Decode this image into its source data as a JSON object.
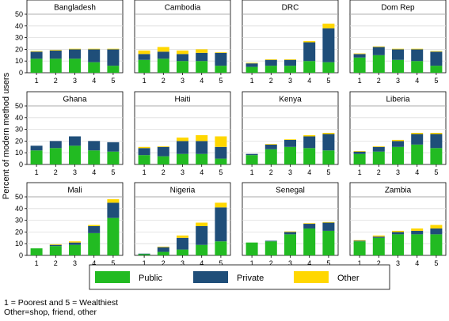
{
  "chart_data": {
    "type": "bar",
    "stacked": true,
    "layout": "small-multiples",
    "ylabel": "Percent of modern method users",
    "categories": [
      "1",
      "2",
      "3",
      "4",
      "5"
    ],
    "ylim": [
      0,
      50
    ],
    "yticks": [
      0,
      10,
      20,
      30,
      40,
      50
    ],
    "grid": true,
    "legend_position": "bottom",
    "series_names": [
      "Public",
      "Private",
      "Other"
    ],
    "colors": {
      "Public": "#22bb22",
      "Private": "#1f4e79",
      "Other": "#ffd700"
    },
    "panels": [
      {
        "title": "Bangladesh",
        "public": [
          12,
          12,
          12,
          9,
          6
        ],
        "private": [
          6,
          7,
          8,
          11,
          14
        ],
        "other": [
          0.5,
          0.5,
          0.5,
          0.5,
          0.5
        ]
      },
      {
        "title": "Cambodia",
        "public": [
          11,
          12,
          10,
          10,
          6
        ],
        "private": [
          5,
          6,
          6,
          7,
          11
        ],
        "other": [
          3,
          4,
          3,
          3,
          0.5
        ]
      },
      {
        "title": "DRC",
        "public": [
          5,
          6,
          6,
          10,
          9
        ],
        "private": [
          3,
          5,
          5,
          16,
          29
        ],
        "other": [
          0.5,
          0.5,
          0.5,
          1,
          4
        ]
      },
      {
        "title": "Dom Rep",
        "public": [
          13,
          15,
          11,
          10,
          6
        ],
        "private": [
          3,
          7,
          9,
          10,
          12
        ],
        "other": [
          0.5,
          0.5,
          0.5,
          0.5,
          0.5
        ]
      },
      {
        "title": "Ghana",
        "public": [
          12,
          14,
          16,
          12,
          11
        ],
        "private": [
          4,
          6,
          8,
          8,
          8
        ],
        "other": [
          0,
          0,
          0,
          0,
          0
        ]
      },
      {
        "title": "Haiti",
        "public": [
          8,
          7,
          9,
          9,
          5
        ],
        "private": [
          6,
          8,
          11,
          11,
          10
        ],
        "other": [
          1,
          0.5,
          3,
          5,
          9
        ]
      },
      {
        "title": "Kenya",
        "public": [
          8,
          13,
          15,
          14,
          12
        ],
        "private": [
          1,
          4,
          6,
          10,
          14
        ],
        "other": [
          0,
          0.5,
          0.5,
          1,
          1
        ]
      },
      {
        "title": "Liberia",
        "public": [
          9,
          11,
          15,
          17,
          14
        ],
        "private": [
          2,
          4,
          5,
          9,
          12
        ],
        "other": [
          0.5,
          0.5,
          1,
          1,
          1
        ]
      },
      {
        "title": "Mali",
        "public": [
          6,
          8,
          9,
          19,
          32
        ],
        "private": [
          0,
          1,
          2,
          6,
          13
        ],
        "other": [
          0,
          0.5,
          1,
          1,
          3
        ]
      },
      {
        "title": "Nigeria",
        "public": [
          1,
          3,
          5,
          9,
          12
        ],
        "private": [
          0.5,
          4,
          10,
          16,
          29
        ],
        "other": [
          0,
          0.5,
          2,
          3,
          4
        ]
      },
      {
        "title": "Senegal",
        "public": [
          11,
          12,
          18,
          23,
          21
        ],
        "private": [
          0,
          0.5,
          2,
          4,
          7
        ],
        "other": [
          0,
          0,
          0.5,
          0.5,
          0.5
        ]
      },
      {
        "title": "Zambia",
        "public": [
          12,
          15,
          18,
          18,
          18
        ],
        "private": [
          0.5,
          1,
          2,
          3,
          5
        ],
        "other": [
          0.5,
          1,
          1,
          2,
          3
        ]
      }
    ]
  },
  "notes": {
    "line1": "1 = Poorest and 5 = Wealthiest",
    "line2": "Other=shop, friend, other"
  }
}
